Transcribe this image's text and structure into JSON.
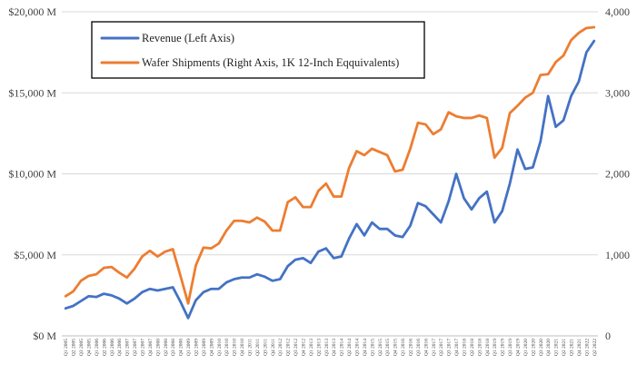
{
  "chart_data": {
    "type": "line",
    "title": "",
    "xlabel": "",
    "grid": "horizontal",
    "legend_placement": "top-left",
    "x": [
      "Q1 2005",
      "Q2 2005",
      "Q3 2005",
      "Q4 2005",
      "Q1 2006",
      "Q2 2006",
      "Q3 2006",
      "Q4 2006",
      "Q1 2007",
      "Q2 2007",
      "Q3 2007",
      "Q4 2007",
      "Q1 2008",
      "Q2 2008",
      "Q3 2008",
      "Q4 2008",
      "Q1 2009",
      "Q2 2009",
      "Q3 2009",
      "Q4 2009",
      "Q1 2010",
      "Q2 2010",
      "Q3 2010",
      "Q4 2010",
      "Q1 2011",
      "Q2 2011",
      "Q3 2011",
      "Q4 2011",
      "Q1 2012",
      "Q2 2012",
      "Q3 2012",
      "Q4 2012",
      "Q1 2013",
      "Q2 2013",
      "Q3 2013",
      "Q4 2013",
      "Q1 2014",
      "Q2 2014",
      "Q3 2014",
      "Q4 2014",
      "Q1 2015",
      "Q2 2015",
      "Q3 2015",
      "Q4 2015",
      "Q1 2016",
      "Q2 2016",
      "Q3 2016",
      "Q4 2016",
      "Q1 2017",
      "Q2 2017",
      "Q3 2017",
      "Q4 2017",
      "Q1 2018",
      "Q2 2018",
      "Q3 2018",
      "Q4 2018",
      "Q1 2019",
      "Q2 2019",
      "Q3 2019",
      "Q4 2019",
      "Q1 2020",
      "Q2 2020",
      "Q3 2020",
      "Q4 2020",
      "Q1 2021",
      "Q2 2021",
      "Q3 2021",
      "Q4 2021",
      "Q1 2022",
      "Q2 2022"
    ],
    "y_left": {
      "label": "",
      "range": [
        0,
        20000
      ],
      "ticks": [
        0,
        5000,
        10000,
        15000,
        20000
      ],
      "tick_labels": [
        "$0 M",
        "$5,000 M",
        "$10,000 M",
        "$15,000 M",
        "$20,000 M"
      ]
    },
    "y_right": {
      "label": "",
      "range": [
        0,
        4000
      ],
      "ticks": [
        0,
        1000,
        2000,
        3000,
        4000
      ],
      "tick_labels": [
        "0",
        "1,000",
        "2,000",
        "3,000",
        "4,000"
      ]
    },
    "series": [
      {
        "name": "Revenue (Left Axis)",
        "axis": "left",
        "color": "#4472C4",
        "values": [
          1700,
          1850,
          2150,
          2450,
          2400,
          2600,
          2500,
          2300,
          2000,
          2300,
          2700,
          2900,
          2800,
          2900,
          3000,
          2100,
          1100,
          2200,
          2700,
          2900,
          2900,
          3300,
          3500,
          3600,
          3600,
          3800,
          3650,
          3400,
          3500,
          4300,
          4700,
          4800,
          4500,
          5200,
          5400,
          4800,
          4900,
          6000,
          6900,
          6200,
          7000,
          6600,
          6600,
          6200,
          6100,
          6800,
          8200,
          8000,
          7500,
          7000,
          8300,
          10000,
          8500,
          7800,
          8500,
          8900,
          7000,
          7700,
          9400,
          11500,
          10300,
          10400,
          12000,
          14800,
          12900,
          13300,
          14800,
          15700,
          17500,
          18200
        ]
      },
      {
        "name": "Wafer Shipments (Right Axis, 1K 12-Inch Eqquivalents)",
        "axis": "right",
        "color": "#ED7D31",
        "values": [
          490,
          550,
          680,
          740,
          760,
          840,
          850,
          780,
          720,
          830,
          980,
          1050,
          980,
          1040,
          1070,
          740,
          400,
          870,
          1090,
          1080,
          1140,
          1300,
          1420,
          1420,
          1400,
          1460,
          1410,
          1300,
          1300,
          1650,
          1710,
          1590,
          1590,
          1790,
          1880,
          1720,
          1720,
          2070,
          2280,
          2230,
          2310,
          2270,
          2230,
          2030,
          2050,
          2310,
          2630,
          2610,
          2490,
          2550,
          2760,
          2710,
          2690,
          2690,
          2720,
          2690,
          2200,
          2320,
          2750,
          2840,
          2940,
          3000,
          3220,
          3230,
          3380,
          3460,
          3650,
          3740,
          3800,
          3810
        ]
      }
    ]
  }
}
